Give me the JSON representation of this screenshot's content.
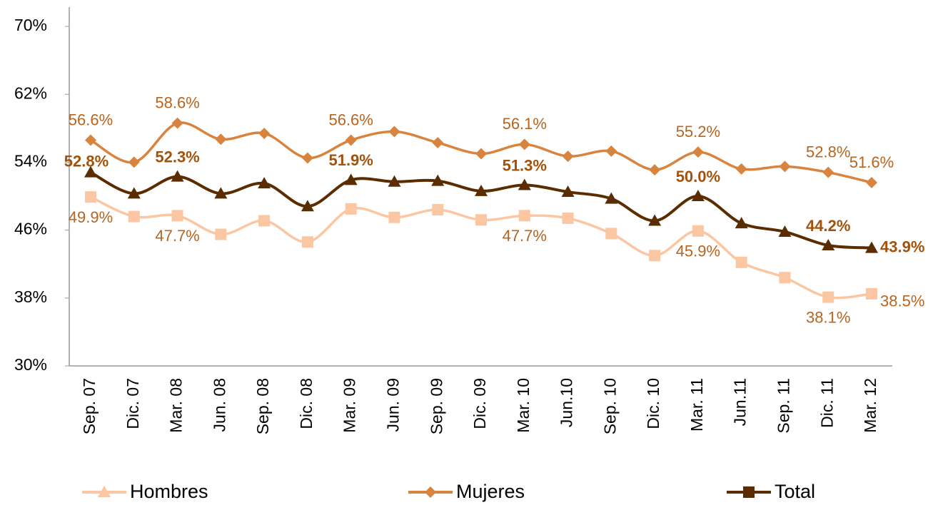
{
  "chart_data": {
    "type": "line",
    "categories": [
      "Sep. 07",
      "Dic. 07",
      "Mar. 08",
      "Jun. 08",
      "Sep. 08",
      "Dic. 08",
      "Mar. 09",
      "Jun. 09",
      "Sep. 09",
      "Dic. 09",
      "Mar. 10",
      "Jun.10",
      "Sep. 10",
      "Dic. 10",
      "Mar. 11",
      "Jun.11",
      "Sep. 11",
      "Dic. 11",
      "Mar. 12"
    ],
    "series": [
      {
        "name": "Hombres",
        "color": "#fbc7a2",
        "marker": "square",
        "values": [
          49.9,
          47.6,
          47.7,
          45.5,
          47.1,
          44.6,
          48.5,
          47.5,
          48.4,
          47.2,
          47.7,
          47.4,
          45.6,
          43.0,
          45.9,
          42.2,
          40.4,
          38.1,
          38.5
        ],
        "value_labels": [
          "49.9%",
          null,
          "47.7%",
          null,
          null,
          null,
          null,
          null,
          null,
          null,
          "47.7%",
          null,
          null,
          null,
          "45.9%",
          null,
          null,
          "38.1%",
          "38.5%"
        ]
      },
      {
        "name": "Mujeres",
        "color": "#d9843e",
        "marker": "diamond",
        "values": [
          56.6,
          54.0,
          58.6,
          56.7,
          57.4,
          54.5,
          56.6,
          57.6,
          56.3,
          55.0,
          56.1,
          54.7,
          55.3,
          53.1,
          55.2,
          53.2,
          53.5,
          52.8,
          51.6
        ],
        "value_labels": [
          "56.6%",
          null,
          "58.6%",
          null,
          null,
          null,
          "56.6%",
          null,
          null,
          null,
          "56.1%",
          null,
          null,
          null,
          "55.2%",
          null,
          null,
          "52.8%",
          "51.6%"
        ]
      },
      {
        "name": "Total",
        "color": "#5b2c00",
        "marker": "triangle",
        "values": [
          52.8,
          50.3,
          52.3,
          50.3,
          51.5,
          48.8,
          51.9,
          51.7,
          51.8,
          50.6,
          51.3,
          50.5,
          49.7,
          47.1,
          50.0,
          46.8,
          45.8,
          44.2,
          43.9
        ],
        "value_labels": [
          "52.8%",
          null,
          "52.3%",
          null,
          null,
          null,
          "51.9%",
          null,
          null,
          null,
          "51.3%",
          null,
          null,
          null,
          "50.0%",
          null,
          null,
          "44.2%",
          "43.9%"
        ]
      }
    ],
    "ylim": [
      30,
      70
    ],
    "yticks": [
      {
        "value": 30,
        "label": "30%"
      },
      {
        "value": 38,
        "label": "38%"
      },
      {
        "value": 46,
        "label": "46%"
      },
      {
        "value": 54,
        "label": "54%"
      },
      {
        "value": 62,
        "label": "62%"
      },
      {
        "value": 70,
        "label": "70%"
      }
    ],
    "legend": "bottom"
  }
}
